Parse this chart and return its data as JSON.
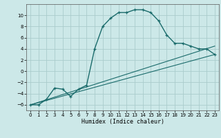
{
  "xlabel": "Humidex (Indice chaleur)",
  "background_color": "#cce8e8",
  "line_color": "#1a6b6b",
  "grid_color": "#aacccc",
  "xlim": [
    -0.5,
    23.5
  ],
  "ylim": [
    -7,
    12
  ],
  "xticks": [
    0,
    1,
    2,
    3,
    4,
    5,
    6,
    7,
    8,
    9,
    10,
    11,
    12,
    13,
    14,
    15,
    16,
    17,
    18,
    19,
    20,
    21,
    22,
    23
  ],
  "yticks": [
    -6,
    -4,
    -2,
    0,
    2,
    4,
    6,
    8,
    10
  ],
  "main_x": [
    0,
    1,
    2,
    3,
    4,
    5,
    6,
    7,
    8,
    9,
    10,
    11,
    12,
    13,
    14,
    15,
    16,
    17,
    18,
    19,
    20,
    21,
    22,
    23
  ],
  "main_y": [
    -6,
    -6,
    -5,
    -3,
    -3.2,
    -4.5,
    -3.2,
    -2.5,
    4,
    8,
    9.5,
    10.5,
    10.5,
    11,
    11,
    10.5,
    9,
    6.5,
    5,
    5,
    4.5,
    4,
    4,
    3
  ],
  "line2_x": [
    0,
    23
  ],
  "line2_y": [
    -6,
    3
  ],
  "line3_x": [
    0,
    23
  ],
  "line3_y": [
    -6,
    4.5
  ]
}
